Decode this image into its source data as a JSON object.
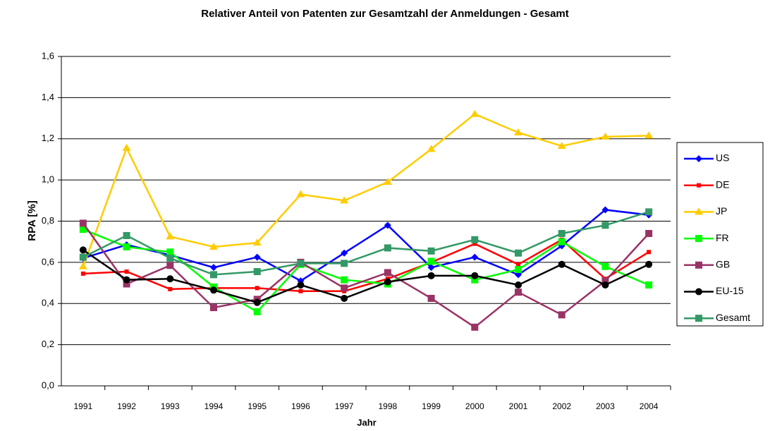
{
  "chart_data": {
    "type": "line",
    "title": "Relativer Anteil von Patenten zur Gesamtzahl der Anmeldungen - Gesamt",
    "x_label": "Jahr",
    "y_label": "RPA [%]",
    "categories": [
      "1991",
      "1992",
      "1993",
      "1994",
      "1995",
      "1996",
      "1997",
      "1998",
      "1999",
      "2000",
      "2001",
      "2002",
      "2003",
      "2004"
    ],
    "ylim": [
      0,
      1.6
    ],
    "yticks": [
      {
        "value": 0,
        "label": "0,0"
      },
      {
        "value": 0.2,
        "label": "0,2"
      },
      {
        "value": 0.4,
        "label": "0,4"
      },
      {
        "value": 0.6,
        "label": "0,6"
      },
      {
        "value": 0.8,
        "label": "0,8"
      },
      {
        "value": 1.0,
        "label": "1,0"
      },
      {
        "value": 1.2,
        "label": "1,2"
      },
      {
        "value": 1.4,
        "label": "1,4"
      },
      {
        "value": 1.6,
        "label": "1,6"
      }
    ],
    "grid": true,
    "legend": "right",
    "series": [
      {
        "name": "US",
        "color": "#0000ff",
        "marker": "diamond",
        "values": [
          0.62,
          0.685,
          0.635,
          0.575,
          0.625,
          0.51,
          0.645,
          0.78,
          0.575,
          0.625,
          0.54,
          0.68,
          0.855,
          0.83
        ]
      },
      {
        "name": "DE",
        "color": "#ff0000",
        "marker": "small-square",
        "values": [
          0.545,
          0.555,
          0.47,
          0.475,
          0.475,
          0.46,
          0.46,
          0.52,
          0.6,
          0.69,
          0.59,
          0.71,
          0.52,
          0.65
        ]
      },
      {
        "name": "JP",
        "color": "#ffcc00",
        "marker": "triangle",
        "values": [
          0.58,
          1.155,
          0.725,
          0.675,
          0.695,
          0.93,
          0.9,
          0.99,
          1.15,
          1.32,
          1.23,
          1.165,
          1.21,
          1.215
        ]
      },
      {
        "name": "FR",
        "color": "#00ff00",
        "marker": "square",
        "values": [
          0.76,
          0.675,
          0.65,
          0.48,
          0.36,
          0.59,
          0.515,
          0.495,
          0.605,
          0.515,
          0.565,
          0.7,
          0.58,
          0.49
        ]
      },
      {
        "name": "GB",
        "color": "#993366",
        "marker": "square",
        "values": [
          0.79,
          0.495,
          0.585,
          0.38,
          0.42,
          0.6,
          0.475,
          0.55,
          0.425,
          0.285,
          0.455,
          0.345,
          0.51,
          0.74
        ]
      },
      {
        "name": "EU-15",
        "color": "#000000",
        "marker": "circle",
        "values": [
          0.66,
          0.515,
          0.52,
          0.465,
          0.405,
          0.49,
          0.425,
          0.505,
          0.535,
          0.535,
          0.49,
          0.59,
          0.49,
          0.59
        ]
      },
      {
        "name": "Gesamt",
        "color": "#339966",
        "marker": "square",
        "values": [
          0.625,
          0.73,
          0.62,
          0.54,
          0.555,
          0.595,
          0.595,
          0.67,
          0.655,
          0.71,
          0.645,
          0.74,
          0.78,
          0.845
        ]
      }
    ]
  }
}
